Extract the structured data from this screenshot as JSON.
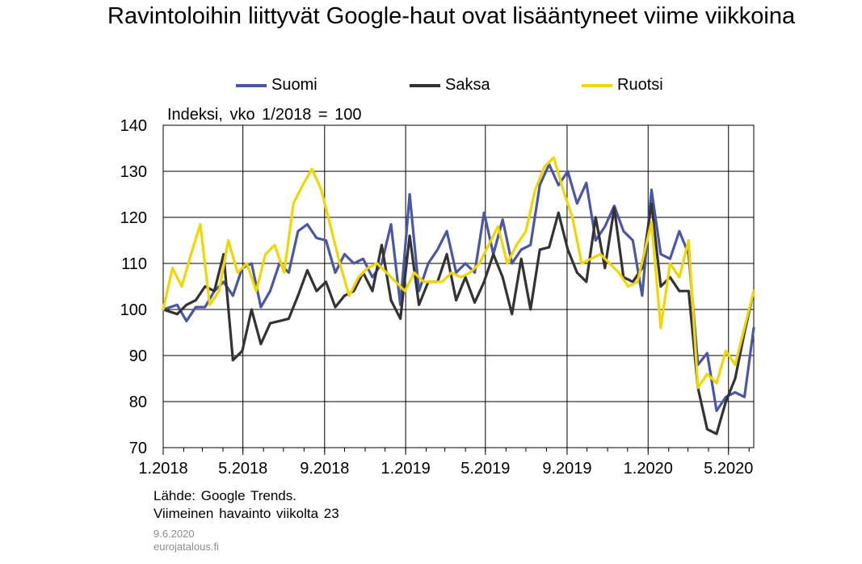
{
  "chart_data": {
    "type": "line",
    "title": "Ravintoloihin liittyvät Google-haut ovat lisääntyneet viime viikkoina",
    "unit_label": "Indeksi, vko 1/2018 = 100",
    "ylim": [
      70,
      140
    ],
    "y_ticks": [
      "70",
      "80",
      "90",
      "100",
      "110",
      "120",
      "130",
      "140"
    ],
    "x_range": [
      "2018-01-01",
      "2020-06-08"
    ],
    "x_ticks": [
      {
        "date": "2018-01-01",
        "label": "1.2018"
      },
      {
        "date": "2018-05-01",
        "label": "5.2018"
      },
      {
        "date": "2018-09-01",
        "label": "9.2018"
      },
      {
        "date": "2019-01-01",
        "label": "1.2019"
      },
      {
        "date": "2019-05-01",
        "label": "5.2019"
      },
      {
        "date": "2019-09-01",
        "label": "9.2019"
      },
      {
        "date": "2020-01-01",
        "label": "1.2020"
      },
      {
        "date": "2020-05-01",
        "label": "5.2020"
      }
    ],
    "grid": true,
    "legend_position": "top",
    "series": [
      {
        "name": "Suomi",
        "color": "#4a56a6",
        "points": [
          [
            "2018-01-01",
            100
          ],
          [
            "2018-01-22",
            101
          ],
          [
            "2018-02-05",
            97.5
          ],
          [
            "2018-02-19",
            100.5
          ],
          [
            "2018-03-05",
            100.5
          ],
          [
            "2018-03-19",
            104
          ],
          [
            "2018-04-02",
            106
          ],
          [
            "2018-04-16",
            103
          ],
          [
            "2018-04-30",
            109
          ],
          [
            "2018-05-14",
            110
          ],
          [
            "2018-05-28",
            100.5
          ],
          [
            "2018-06-11",
            104
          ],
          [
            "2018-06-25",
            110
          ],
          [
            "2018-07-09",
            108
          ],
          [
            "2018-07-23",
            117
          ],
          [
            "2018-08-06",
            118.5
          ],
          [
            "2018-08-20",
            115.5
          ],
          [
            "2018-09-03",
            115
          ],
          [
            "2018-09-17",
            108
          ],
          [
            "2018-10-01",
            112
          ],
          [
            "2018-10-15",
            110
          ],
          [
            "2018-10-29",
            111
          ],
          [
            "2018-11-12",
            107
          ],
          [
            "2018-11-26",
            110
          ],
          [
            "2018-12-10",
            118.5
          ],
          [
            "2018-12-24",
            101
          ],
          [
            "2019-01-07",
            125
          ],
          [
            "2019-01-21",
            104
          ],
          [
            "2019-02-04",
            110
          ],
          [
            "2019-02-18",
            113
          ],
          [
            "2019-03-04",
            117
          ],
          [
            "2019-03-18",
            108
          ],
          [
            "2019-04-01",
            110
          ],
          [
            "2019-04-15",
            108
          ],
          [
            "2019-04-29",
            121
          ],
          [
            "2019-05-13",
            112
          ],
          [
            "2019-05-27",
            119.5
          ],
          [
            "2019-06-10",
            110
          ],
          [
            "2019-06-24",
            113
          ],
          [
            "2019-07-08",
            114
          ],
          [
            "2019-07-22",
            127
          ],
          [
            "2019-08-05",
            131.5
          ],
          [
            "2019-08-19",
            127
          ],
          [
            "2019-09-02",
            130
          ],
          [
            "2019-09-16",
            123
          ],
          [
            "2019-09-30",
            127.5
          ],
          [
            "2019-10-14",
            115
          ],
          [
            "2019-10-28",
            118
          ],
          [
            "2019-11-11",
            122.5
          ],
          [
            "2019-11-25",
            117
          ],
          [
            "2019-12-09",
            115
          ],
          [
            "2019-12-23",
            103
          ],
          [
            "2020-01-06",
            126
          ],
          [
            "2020-01-20",
            112
          ],
          [
            "2020-02-03",
            111
          ],
          [
            "2020-02-17",
            117
          ],
          [
            "2020-03-02",
            112
          ],
          [
            "2020-03-16",
            88
          ],
          [
            "2020-03-30",
            90.5
          ],
          [
            "2020-04-13",
            78
          ],
          [
            "2020-04-27",
            81
          ],
          [
            "2020-05-11",
            82
          ],
          [
            "2020-05-25",
            81
          ],
          [
            "2020-06-08",
            96
          ]
        ]
      },
      {
        "name": "Saksa",
        "color": "#333333",
        "points": [
          [
            "2018-01-01",
            100
          ],
          [
            "2018-01-22",
            99
          ],
          [
            "2018-02-05",
            101
          ],
          [
            "2018-02-19",
            102
          ],
          [
            "2018-03-05",
            105
          ],
          [
            "2018-03-19",
            104
          ],
          [
            "2018-04-02",
            112
          ],
          [
            "2018-04-16",
            89
          ],
          [
            "2018-04-30",
            91
          ],
          [
            "2018-05-14",
            100
          ],
          [
            "2018-05-28",
            92.5
          ],
          [
            "2018-06-11",
            97
          ],
          [
            "2018-06-25",
            97.5
          ],
          [
            "2018-07-09",
            98
          ],
          [
            "2018-07-23",
            103
          ],
          [
            "2018-08-06",
            108.5
          ],
          [
            "2018-08-20",
            104
          ],
          [
            "2018-09-03",
            106
          ],
          [
            "2018-09-17",
            100.5
          ],
          [
            "2018-10-01",
            103
          ],
          [
            "2018-10-15",
            104
          ],
          [
            "2018-10-29",
            108
          ],
          [
            "2018-11-12",
            104
          ],
          [
            "2018-11-26",
            114
          ],
          [
            "2018-12-10",
            102
          ],
          [
            "2018-12-24",
            98
          ],
          [
            "2019-01-07",
            116
          ],
          [
            "2019-01-21",
            101
          ],
          [
            "2019-02-04",
            106
          ],
          [
            "2019-02-18",
            106
          ],
          [
            "2019-03-04",
            112
          ],
          [
            "2019-03-18",
            102
          ],
          [
            "2019-04-01",
            107
          ],
          [
            "2019-04-15",
            101.5
          ],
          [
            "2019-04-29",
            106
          ],
          [
            "2019-05-13",
            112
          ],
          [
            "2019-05-27",
            107
          ],
          [
            "2019-06-10",
            99
          ],
          [
            "2019-06-24",
            111
          ],
          [
            "2019-07-08",
            100
          ],
          [
            "2019-07-22",
            113
          ],
          [
            "2019-08-05",
            113.5
          ],
          [
            "2019-08-19",
            121
          ],
          [
            "2019-09-02",
            113
          ],
          [
            "2019-09-16",
            108
          ],
          [
            "2019-09-30",
            106
          ],
          [
            "2019-10-14",
            120
          ],
          [
            "2019-10-28",
            109
          ],
          [
            "2019-11-11",
            122
          ],
          [
            "2019-11-25",
            107
          ],
          [
            "2019-12-09",
            106
          ],
          [
            "2019-12-23",
            109
          ],
          [
            "2020-01-06",
            123
          ],
          [
            "2020-01-20",
            105
          ],
          [
            "2020-02-03",
            107
          ],
          [
            "2020-02-17",
            104
          ],
          [
            "2020-03-02",
            104
          ],
          [
            "2020-03-16",
            83
          ],
          [
            "2020-03-30",
            74
          ],
          [
            "2020-04-13",
            73
          ],
          [
            "2020-04-27",
            80
          ],
          [
            "2020-05-11",
            85
          ],
          [
            "2020-05-25",
            95
          ],
          [
            "2020-06-08",
            104
          ]
        ]
      },
      {
        "name": "Ruotsi",
        "color": "#f2d600",
        "points": [
          [
            "2018-01-01",
            100
          ],
          [
            "2018-01-15",
            109
          ],
          [
            "2018-01-29",
            105
          ],
          [
            "2018-02-12",
            112
          ],
          [
            "2018-02-26",
            118.5
          ],
          [
            "2018-03-12",
            101
          ],
          [
            "2018-03-26",
            104
          ],
          [
            "2018-04-09",
            115
          ],
          [
            "2018-04-23",
            108
          ],
          [
            "2018-05-07",
            110
          ],
          [
            "2018-05-21",
            104
          ],
          [
            "2018-06-04",
            112
          ],
          [
            "2018-06-18",
            114
          ],
          [
            "2018-07-02",
            108
          ],
          [
            "2018-07-16",
            123
          ],
          [
            "2018-07-30",
            127
          ],
          [
            "2018-08-13",
            130.5
          ],
          [
            "2018-08-27",
            126
          ],
          [
            "2018-09-10",
            118
          ],
          [
            "2018-09-24",
            110
          ],
          [
            "2018-10-08",
            103
          ],
          [
            "2018-10-22",
            107
          ],
          [
            "2018-11-05",
            109
          ],
          [
            "2018-11-19",
            110
          ],
          [
            "2018-12-03",
            108
          ],
          [
            "2018-12-17",
            106
          ],
          [
            "2018-12-31",
            104
          ],
          [
            "2019-01-14",
            108
          ],
          [
            "2019-01-28",
            106
          ],
          [
            "2019-02-11",
            106
          ],
          [
            "2019-02-25",
            106
          ],
          [
            "2019-03-11",
            108
          ],
          [
            "2019-03-25",
            107
          ],
          [
            "2019-04-08",
            108
          ],
          [
            "2019-04-22",
            110
          ],
          [
            "2019-05-06",
            114
          ],
          [
            "2019-05-20",
            118
          ],
          [
            "2019-06-03",
            110
          ],
          [
            "2019-06-17",
            114
          ],
          [
            "2019-07-01",
            117
          ],
          [
            "2019-07-15",
            126
          ],
          [
            "2019-07-29",
            131
          ],
          [
            "2019-08-12",
            133
          ],
          [
            "2019-08-26",
            126
          ],
          [
            "2019-09-09",
            120
          ],
          [
            "2019-09-23",
            110
          ],
          [
            "2019-10-07",
            111
          ],
          [
            "2019-10-21",
            112
          ],
          [
            "2019-11-04",
            110
          ],
          [
            "2019-11-18",
            108
          ],
          [
            "2019-12-02",
            105
          ],
          [
            "2019-12-16",
            106
          ],
          [
            "2020-01-06",
            119
          ],
          [
            "2020-01-20",
            96
          ],
          [
            "2020-02-03",
            110
          ],
          [
            "2020-02-17",
            107
          ],
          [
            "2020-03-02",
            115
          ],
          [
            "2020-03-16",
            83
          ],
          [
            "2020-03-30",
            86
          ],
          [
            "2020-04-13",
            84
          ],
          [
            "2020-04-27",
            91
          ],
          [
            "2020-05-11",
            88
          ],
          [
            "2020-05-25",
            96
          ],
          [
            "2020-06-08",
            104
          ]
        ]
      }
    ]
  },
  "source": {
    "line1": "Lähde: Google Trends.",
    "line2": "Viimeinen havainto viikolta 23"
  },
  "meta": {
    "date": "9.6.2020",
    "site": "eurojatalous.fi"
  }
}
